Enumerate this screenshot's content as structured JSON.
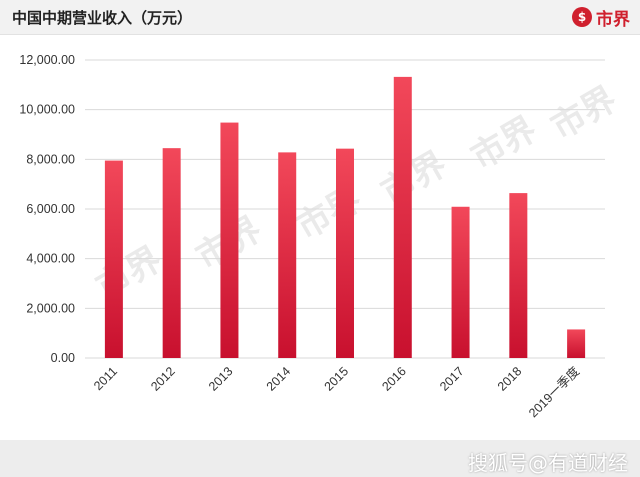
{
  "header": {
    "title": "中国中期营业收入（万元）",
    "logo_symbol": "$",
    "logo_text": "市界"
  },
  "background_marks": [
    "市界",
    "市界",
    "市界",
    "市界",
    "市界",
    "市界"
  ],
  "footer": {
    "watermark": "搜狐号@有道财经"
  },
  "colors": {
    "bar": "#c8102e",
    "grid": "#d9d9d9",
    "brand": "#d0202e"
  },
  "chart_data": {
    "type": "bar",
    "title": "中国中期营业收入（万元）",
    "categories": [
      "2011",
      "2012",
      "2013",
      "2014",
      "2015",
      "2016",
      "2017",
      "2018",
      "2019一季度"
    ],
    "values": [
      7950,
      8450,
      9480,
      8280,
      8430,
      11320,
      6090,
      6640,
      1150
    ],
    "ylim": [
      0,
      12000
    ],
    "yticks": [
      "0.00",
      "2,000.00",
      "4,000.00",
      "6,000.00",
      "8,000.00",
      "10,000.00",
      "12,000.00"
    ],
    "grid": true,
    "legend": "none"
  }
}
